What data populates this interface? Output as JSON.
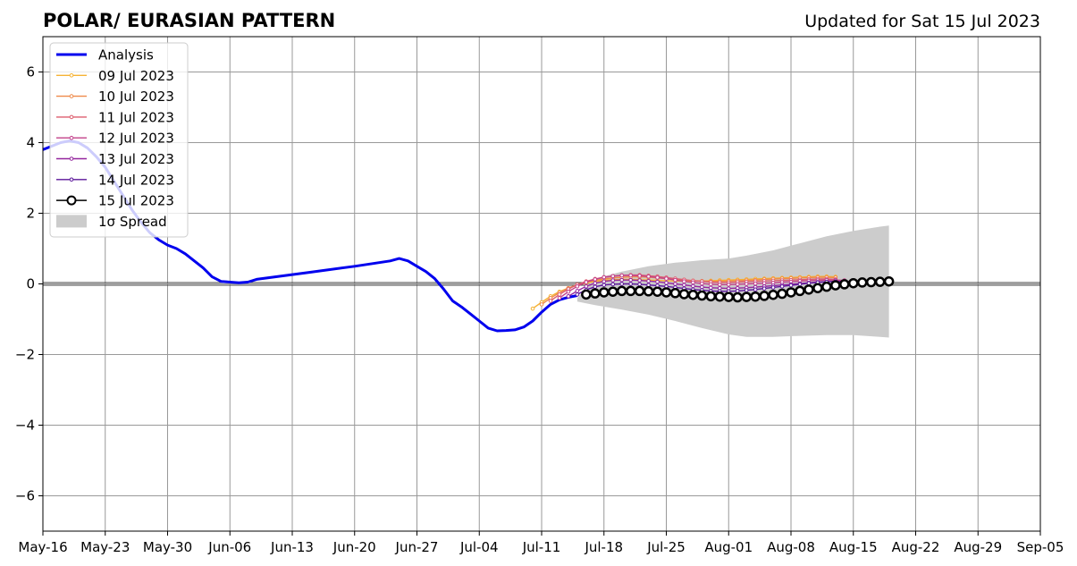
{
  "header": {
    "title": "POLAR/ EURASIAN  PATTERN",
    "updated": "Updated for Sat 15 Jul 2023"
  },
  "chart_data": {
    "type": "line",
    "title": "POLAR/ EURASIAN  PATTERN",
    "subtitle": "Updated for Sat 15 Jul 2023",
    "xlabel": "",
    "ylabel": "",
    "x_axis": {
      "type": "date",
      "range": [
        "2023-05-16",
        "2023-09-05"
      ],
      "tick_labels": [
        "May-16",
        "May-23",
        "May-30",
        "Jun-06",
        "Jun-13",
        "Jun-20",
        "Jun-27",
        "Jul-04",
        "Jul-11",
        "Jul-18",
        "Jul-25",
        "Aug-01",
        "Aug-08",
        "Aug-15",
        "Aug-22",
        "Aug-29",
        "Sep-05"
      ]
    },
    "y_axis": {
      "range": [
        -7,
        7
      ],
      "tick_labels": [
        "−6",
        "−4",
        "−2",
        "0",
        "2",
        "4",
        "6"
      ],
      "ticks": [
        -6,
        -4,
        -2,
        0,
        2,
        4,
        6
      ]
    },
    "grid": true,
    "zero_line": true,
    "legend_position": "top-left",
    "legend": [
      {
        "label": "Analysis",
        "kind": "line",
        "color": "#0000ee"
      },
      {
        "label": "09 Jul 2023",
        "kind": "marker-line",
        "color": "#f5b335"
      },
      {
        "label": "10 Jul 2023",
        "kind": "marker-line",
        "color": "#ef8a4a"
      },
      {
        "label": "11 Jul 2023",
        "kind": "marker-line",
        "color": "#dd5e6e"
      },
      {
        "label": "12 Jul 2023",
        "kind": "marker-line",
        "color": "#c2418a"
      },
      {
        "label": "13 Jul 2023",
        "kind": "marker-line",
        "color": "#94269e"
      },
      {
        "label": "14 Jul 2023",
        "kind": "marker-line",
        "color": "#5b169a"
      },
      {
        "label": "15 Jul 2023",
        "kind": "open-circle",
        "color": "#000000"
      },
      {
        "label": "1σ Spread",
        "kind": "patch",
        "color": "#cccccc"
      }
    ],
    "analysis": {
      "name": "Analysis",
      "color": "#0000ee",
      "points": [
        [
          "2023-05-16",
          3.8
        ],
        [
          "2023-05-18",
          4.0
        ],
        [
          "2023-05-19",
          4.05
        ],
        [
          "2023-05-20",
          4.0
        ],
        [
          "2023-05-21",
          3.85
        ],
        [
          "2023-05-22",
          3.6
        ],
        [
          "2023-05-23",
          3.3
        ],
        [
          "2023-05-24",
          2.9
        ],
        [
          "2023-05-25",
          2.5
        ],
        [
          "2023-05-26",
          2.1
        ],
        [
          "2023-05-27",
          1.75
        ],
        [
          "2023-05-28",
          1.45
        ],
        [
          "2023-05-29",
          1.25
        ],
        [
          "2023-05-30",
          1.1
        ],
        [
          "2023-05-31",
          1.0
        ],
        [
          "2023-06-01",
          0.85
        ],
        [
          "2023-06-02",
          0.65
        ],
        [
          "2023-06-03",
          0.45
        ],
        [
          "2023-06-04",
          0.2
        ],
        [
          "2023-06-05",
          0.07
        ],
        [
          "2023-06-06",
          0.05
        ],
        [
          "2023-06-07",
          0.03
        ],
        [
          "2023-06-08",
          0.05
        ],
        [
          "2023-06-09",
          0.13
        ],
        [
          "2023-06-15",
          0.33
        ],
        [
          "2023-06-20",
          0.5
        ],
        [
          "2023-06-24",
          0.65
        ],
        [
          "2023-06-25",
          0.72
        ],
        [
          "2023-06-26",
          0.65
        ],
        [
          "2023-06-27",
          0.5
        ],
        [
          "2023-06-28",
          0.35
        ],
        [
          "2023-06-29",
          0.15
        ],
        [
          "2023-06-30",
          -0.15
        ],
        [
          "2023-07-01",
          -0.48
        ],
        [
          "2023-07-02",
          -0.65
        ],
        [
          "2023-07-03",
          -0.85
        ],
        [
          "2023-07-04",
          -1.05
        ],
        [
          "2023-07-05",
          -1.25
        ],
        [
          "2023-07-06",
          -1.33
        ],
        [
          "2023-07-07",
          -1.32
        ],
        [
          "2023-07-08",
          -1.3
        ],
        [
          "2023-07-09",
          -1.22
        ],
        [
          "2023-07-10",
          -1.05
        ],
        [
          "2023-07-11",
          -0.8
        ],
        [
          "2023-07-12",
          -0.58
        ],
        [
          "2023-07-13",
          -0.45
        ],
        [
          "2023-07-14",
          -0.38
        ],
        [
          "2023-07-15",
          -0.33
        ]
      ]
    },
    "spread": {
      "name": "1σ Spread",
      "color": "#cccccc",
      "points": [
        [
          "2023-07-15",
          -0.5,
          -0.4
        ],
        [
          "2023-07-17",
          -0.6,
          0.15
        ],
        [
          "2023-07-20",
          -0.73,
          0.35
        ],
        [
          "2023-07-23",
          -0.87,
          0.5
        ],
        [
          "2023-07-26",
          -1.05,
          0.6
        ],
        [
          "2023-07-29",
          -1.25,
          0.67
        ],
        [
          "2023-08-01",
          -1.43,
          0.72
        ],
        [
          "2023-08-03",
          -1.5,
          0.8
        ],
        [
          "2023-08-06",
          -1.5,
          0.95
        ],
        [
          "2023-08-09",
          -1.47,
          1.15
        ],
        [
          "2023-08-12",
          -1.45,
          1.35
        ],
        [
          "2023-08-15",
          -1.45,
          1.5
        ],
        [
          "2023-08-18",
          -1.5,
          1.62
        ],
        [
          "2023-08-19",
          -1.52,
          1.65
        ]
      ]
    },
    "series": [
      {
        "name": "09 Jul 2023",
        "color": "#f5b335",
        "start": "2023-07-10",
        "step_days": 1,
        "values": [
          -0.7,
          -0.52,
          -0.35,
          -0.22,
          -0.12,
          -0.04,
          0.02,
          0.07,
          0.1,
          0.12,
          0.13,
          0.13,
          0.12,
          0.11,
          0.1,
          0.09,
          0.08,
          0.08,
          0.08,
          0.08,
          0.09,
          0.1,
          0.11,
          0.12,
          0.13,
          0.14,
          0.15,
          0.16,
          0.17,
          0.18,
          0.19,
          0.2,
          0.21,
          0.21,
          0.2
        ]
      },
      {
        "name": "10 Jul 2023",
        "color": "#ef8a4a",
        "start": "2023-07-11",
        "step_days": 1,
        "values": [
          -0.58,
          -0.4,
          -0.25,
          -0.12,
          -0.02,
          0.05,
          0.1,
          0.14,
          0.17,
          0.19,
          0.2,
          0.2,
          0.19,
          0.17,
          0.15,
          0.13,
          0.11,
          0.09,
          0.08,
          0.07,
          0.07,
          0.08,
          0.09,
          0.1,
          0.11,
          0.13,
          0.14,
          0.15,
          0.16,
          0.17,
          0.18,
          0.19,
          0.19,
          0.18
        ]
      },
      {
        "name": "11 Jul 2023",
        "color": "#dd5e6e",
        "start": "2023-07-12",
        "step_days": 1,
        "values": [
          -0.48,
          -0.3,
          -0.15,
          -0.02,
          0.07,
          0.14,
          0.19,
          0.22,
          0.24,
          0.25,
          0.25,
          0.23,
          0.21,
          0.18,
          0.15,
          0.12,
          0.09,
          0.07,
          0.05,
          0.04,
          0.04,
          0.05,
          0.06,
          0.07,
          0.08,
          0.09,
          0.1,
          0.11,
          0.12,
          0.13,
          0.14,
          0.14,
          0.13
        ]
      },
      {
        "name": "12 Jul 2023",
        "color": "#c2418a",
        "start": "2023-07-13",
        "step_days": 1,
        "values": [
          -0.4,
          -0.22,
          -0.07,
          0.05,
          0.13,
          0.19,
          0.22,
          0.24,
          0.24,
          0.23,
          0.21,
          0.18,
          0.15,
          0.11,
          0.07,
          0.04,
          0.01,
          -0.01,
          -0.02,
          -0.02,
          -0.01,
          0.0,
          0.01,
          0.02,
          0.03,
          0.05,
          0.06,
          0.08,
          0.09,
          0.1,
          0.11,
          0.11,
          0.1
        ]
      },
      {
        "name": "13 Jul 2023",
        "color": "#94269e",
        "start": "2023-07-14",
        "step_days": 1,
        "values": [
          -0.35,
          -0.2,
          -0.07,
          0.02,
          0.07,
          0.1,
          0.11,
          0.11,
          0.1,
          0.08,
          0.06,
          0.03,
          0.0,
          -0.03,
          -0.06,
          -0.09,
          -0.11,
          -0.12,
          -0.13,
          -0.12,
          -0.11,
          -0.09,
          -0.07,
          -0.05,
          -0.03,
          -0.01,
          0.01,
          0.03,
          0.05,
          0.06,
          0.07,
          0.07,
          0.06
        ]
      },
      {
        "name": "14 Jul 2023",
        "color": "#5b169a",
        "start": "2023-07-15",
        "step_days": 1,
        "values": [
          -0.3,
          -0.17,
          -0.08,
          -0.03,
          -0.01,
          0.0,
          0.0,
          -0.01,
          -0.03,
          -0.05,
          -0.07,
          -0.1,
          -0.13,
          -0.16,
          -0.18,
          -0.2,
          -0.21,
          -0.21,
          -0.2,
          -0.18,
          -0.16,
          -0.13,
          -0.1,
          -0.07,
          -0.04,
          -0.01,
          0.02,
          0.04,
          0.06,
          0.07,
          0.07
        ]
      },
      {
        "name": "15 Jul 2023",
        "color": "#000000",
        "start": "2023-07-16",
        "step_days": 1,
        "values": [
          -0.3,
          -0.27,
          -0.24,
          -0.22,
          -0.2,
          -0.2,
          -0.2,
          -0.21,
          -0.22,
          -0.24,
          -0.26,
          -0.29,
          -0.31,
          -0.33,
          -0.35,
          -0.36,
          -0.37,
          -0.38,
          -0.37,
          -0.36,
          -0.34,
          -0.31,
          -0.28,
          -0.24,
          -0.2,
          -0.16,
          -0.12,
          -0.08,
          -0.04,
          -0.01,
          0.02,
          0.04,
          0.05,
          0.06,
          0.07
        ]
      }
    ]
  }
}
